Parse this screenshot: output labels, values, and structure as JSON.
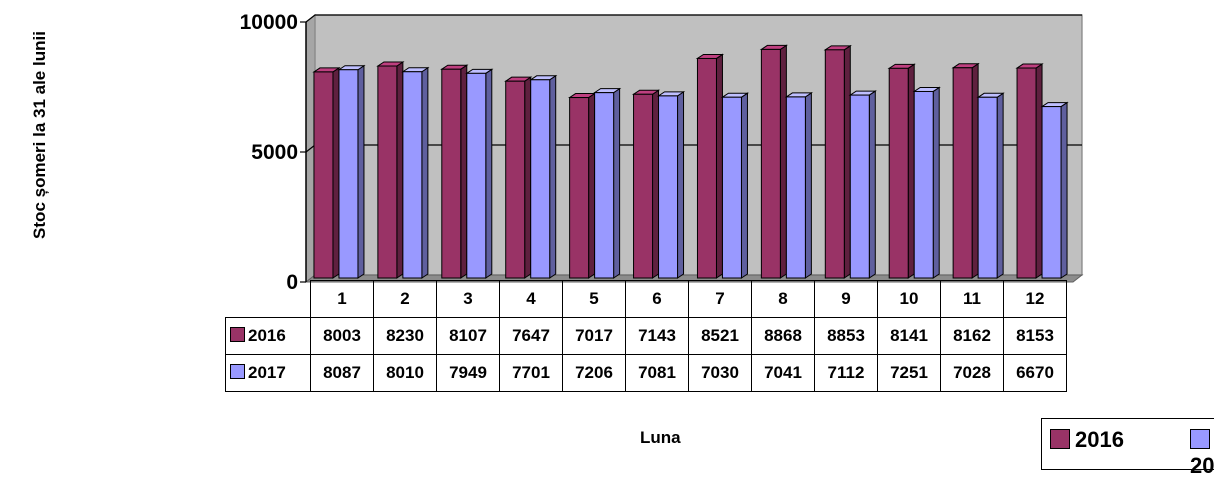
{
  "chart_data": {
    "type": "bar",
    "subtype": "3d-clustered-column-with-data-table",
    "ylabel": "Stoc șomeri la 31 ale lunii",
    "xlabel": "Luna",
    "categories": [
      "1",
      "2",
      "3",
      "4",
      "5",
      "6",
      "7",
      "8",
      "9",
      "10",
      "11",
      "12"
    ],
    "ylim": [
      0,
      10000
    ],
    "yticks": [
      0,
      5000,
      10000
    ],
    "series": [
      {
        "name": "2016",
        "color": "#993366",
        "values": [
          8003,
          8230,
          8107,
          7647,
          7017,
          7143,
          8521,
          8868,
          8853,
          8141,
          8162,
          8153
        ]
      },
      {
        "name": "2017",
        "color": "#9999FF",
        "values": [
          8087,
          8010,
          7949,
          7701,
          7206,
          7081,
          7030,
          7041,
          7112,
          7251,
          7028,
          6670
        ]
      }
    ],
    "grid": "horizontal-major",
    "plot_background": "#C0C0C0",
    "legend_position": "bottom-right"
  }
}
